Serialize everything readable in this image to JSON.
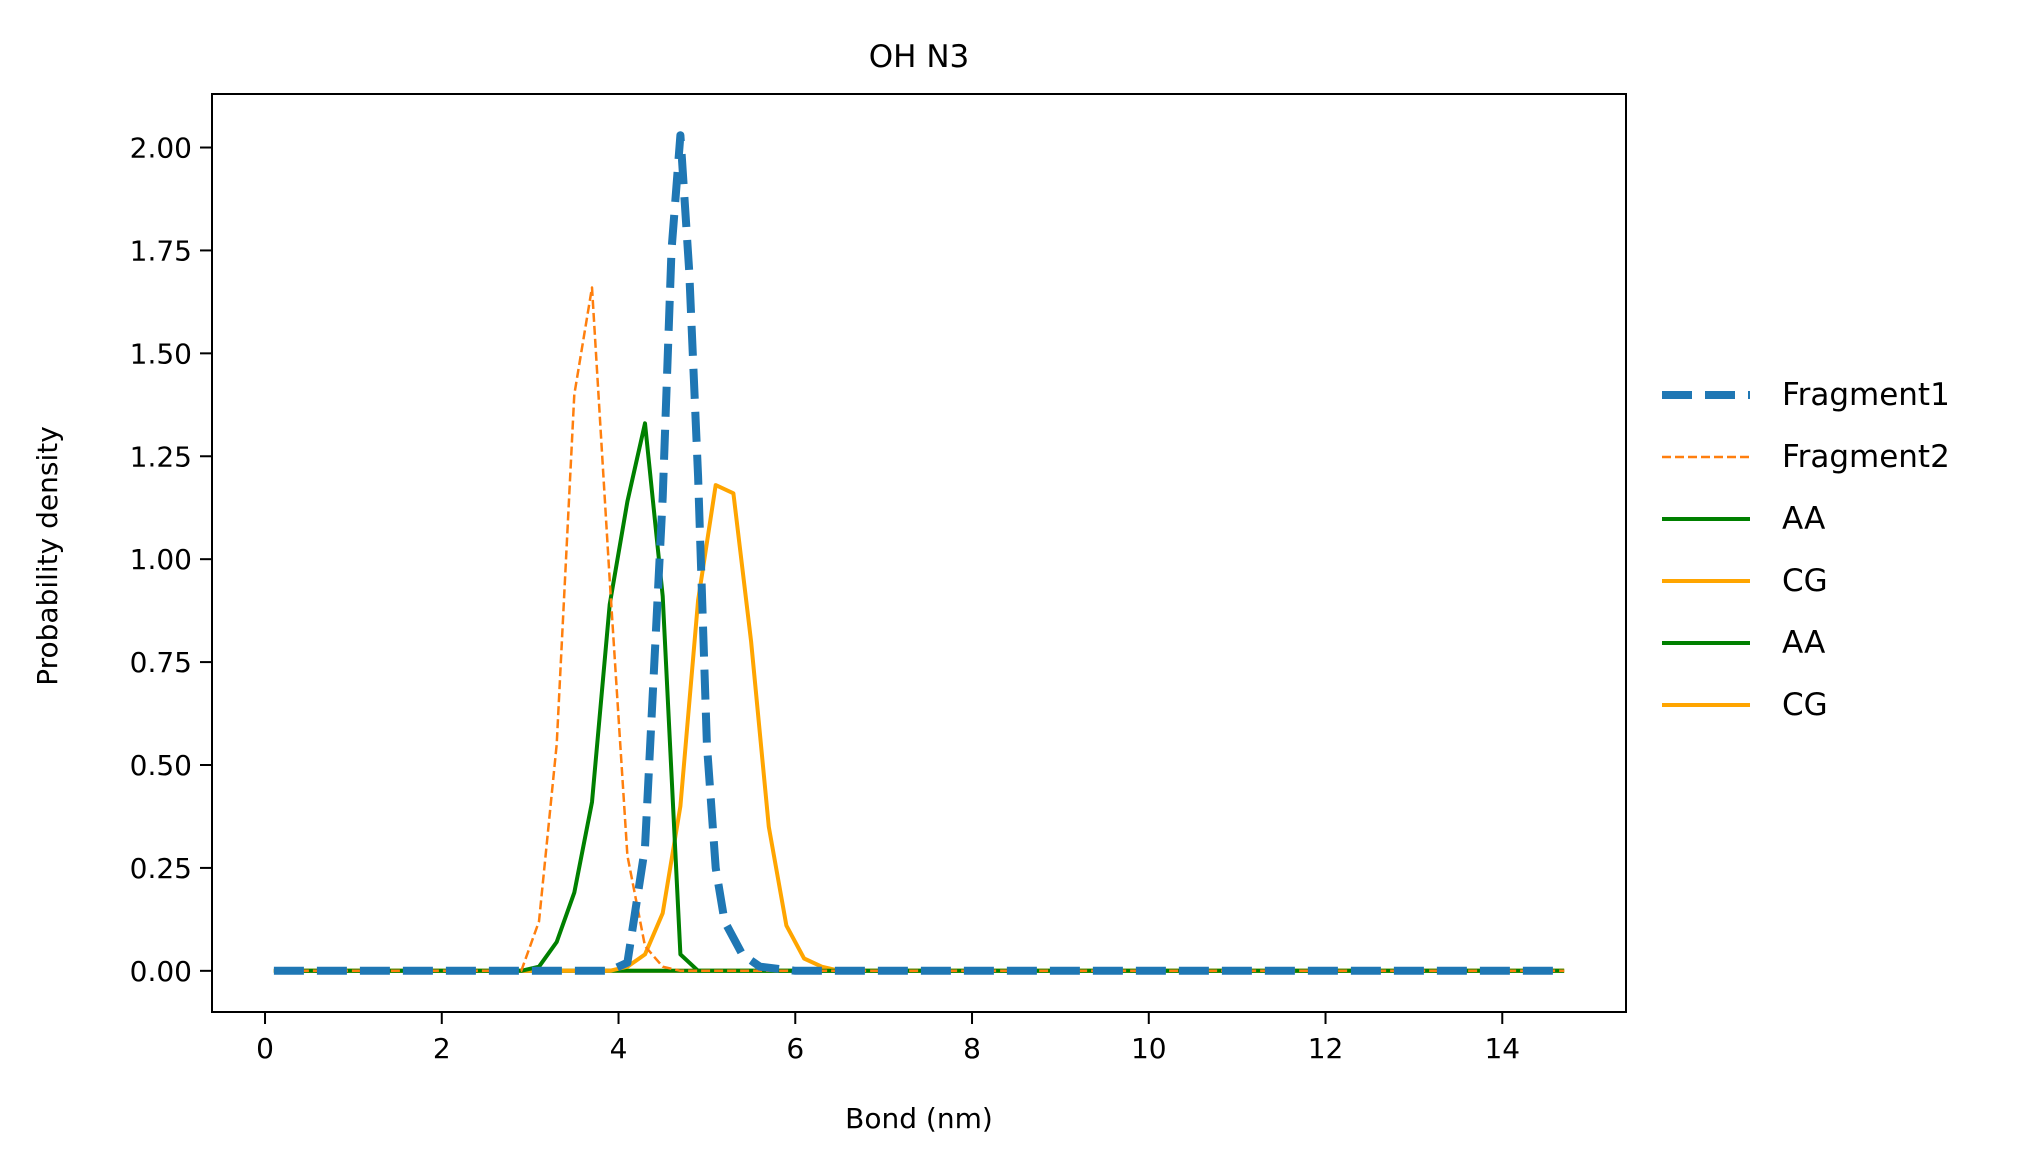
{
  "chart_data": {
    "type": "line",
    "title": "OH N3",
    "xlabel": "Bond (nm)",
    "ylabel": "Probability density",
    "xlim": [
      -0.6,
      15.4
    ],
    "ylim": [
      -0.1,
      2.13
    ],
    "xticks": [
      0,
      2,
      4,
      6,
      8,
      10,
      12,
      14
    ],
    "xtick_labels": [
      "0",
      "2",
      "4",
      "6",
      "8",
      "10",
      "12",
      "14"
    ],
    "yticks": [
      0.0,
      0.25,
      0.5,
      0.75,
      1.0,
      1.25,
      1.5,
      1.75,
      2.0
    ],
    "ytick_labels": [
      "0.00",
      "0.25",
      "0.50",
      "0.75",
      "1.00",
      "1.25",
      "1.50",
      "1.75",
      "2.00"
    ],
    "grid": false,
    "legend_position": "outside-right",
    "series": [
      {
        "name": "Fragment1",
        "color": "#1f77b4",
        "style": "dashed-thick",
        "x": [
          0.1,
          3.9,
          4.1,
          4.3,
          4.5,
          4.6,
          4.7,
          4.8,
          4.9,
          5.0,
          5.1,
          5.2,
          5.4,
          5.6,
          6.0,
          14.7
        ],
        "y": [
          0.0,
          0.0,
          0.02,
          0.3,
          1.15,
          1.75,
          2.03,
          1.7,
          1.2,
          0.55,
          0.25,
          0.12,
          0.04,
          0.01,
          0.0,
          0.0
        ]
      },
      {
        "name": "Fragment2",
        "color": "#ff7f0e",
        "style": "dashed-thin",
        "x": [
          0.1,
          2.9,
          3.1,
          3.3,
          3.5,
          3.7,
          3.9,
          4.1,
          4.3,
          4.5,
          4.7,
          14.7
        ],
        "y": [
          0.0,
          0.0,
          0.12,
          0.55,
          1.4,
          1.66,
          0.95,
          0.28,
          0.06,
          0.01,
          0.0,
          0.0
        ]
      },
      {
        "name": "AA",
        "color": "#008000",
        "style": "solid",
        "x": [
          0.1,
          2.9,
          3.1,
          3.3,
          3.5,
          3.7,
          3.9,
          4.1,
          4.3,
          4.5,
          4.7,
          4.9,
          5.1,
          14.7
        ],
        "y": [
          0.0,
          0.0,
          0.01,
          0.07,
          0.19,
          0.41,
          0.89,
          1.14,
          1.33,
          0.91,
          0.04,
          0.0,
          0.0,
          0.0
        ]
      },
      {
        "name": "CG",
        "color": "#ffa500",
        "style": "solid",
        "x": [
          0.1,
          3.9,
          4.1,
          4.3,
          4.5,
          4.7,
          4.9,
          5.1,
          5.3,
          5.5,
          5.7,
          5.9,
          6.1,
          6.3,
          6.5,
          14.7
        ],
        "y": [
          0.0,
          0.0,
          0.01,
          0.04,
          0.14,
          0.4,
          0.9,
          1.18,
          1.16,
          0.8,
          0.35,
          0.11,
          0.03,
          0.01,
          0.0,
          0.0
        ]
      },
      {
        "name": "AA",
        "color": "#008000",
        "style": "solid",
        "x": [
          0.1,
          14.7
        ],
        "y": [
          0.0,
          0.0
        ]
      },
      {
        "name": "CG",
        "color": "#ffa500",
        "style": "solid",
        "x": [
          0.1,
          14.7
        ],
        "y": [
          0.0,
          0.0
        ]
      }
    ]
  }
}
